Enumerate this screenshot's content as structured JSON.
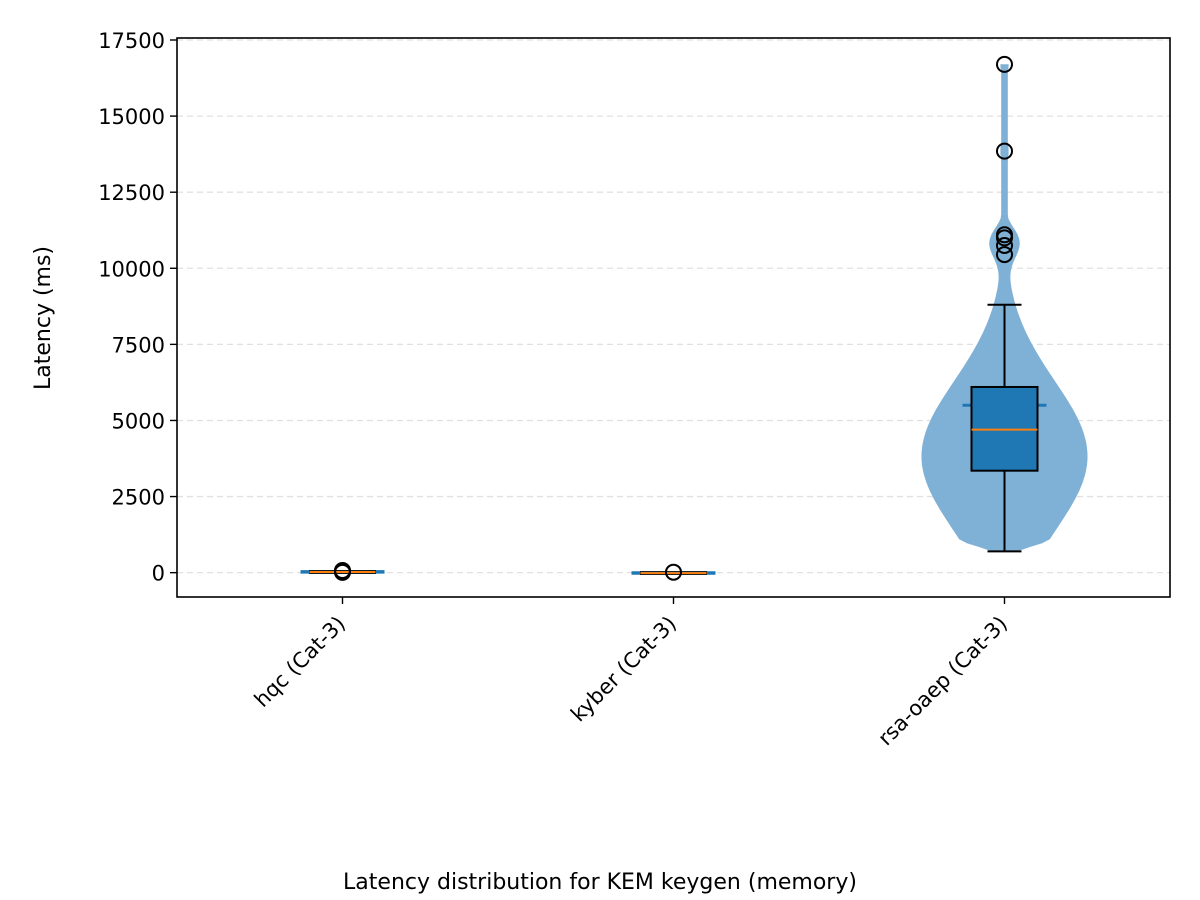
{
  "chart_data": {
    "type": "violin",
    "title": "Latency distribution for KEM keygen (memory)",
    "xlabel": "",
    "ylabel": "Latency (ms)",
    "ylim": [
      -800,
      17500
    ],
    "yticks": [
      0,
      2500,
      5000,
      7500,
      10000,
      12500,
      15000,
      17500
    ],
    "grid": "y-dashed",
    "categories": [
      "hqc (Cat-3)",
      "kyber (Cat-3)",
      "rsa-oaep (Cat-3)"
    ],
    "distributions": [
      {
        "category": "hqc (Cat-3)",
        "min": 0,
        "q1": 10,
        "median": 20,
        "q3": 30,
        "max": 60,
        "mean": 25,
        "outliers": [
          10,
          40,
          55,
          70
        ]
      },
      {
        "category": "kyber (Cat-3)",
        "min": -40,
        "q1": -20,
        "median": -15,
        "q3": 0,
        "max": 10,
        "mean": -10,
        "outliers": [
          15
        ]
      },
      {
        "category": "rsa-oaep (Cat-3)",
        "min": 700,
        "q1": 3350,
        "median": 4700,
        "q3": 6100,
        "max": 8800,
        "mean": 5500,
        "outliers": [
          10450,
          10750,
          11000,
          11100,
          13850,
          16700
        ]
      }
    ],
    "colors": {
      "violin": "#7fb0d6",
      "box": "#1f77b4",
      "median": "#ff7f0e",
      "mean": "#1f77b4",
      "grid": "#e0e0e0"
    }
  }
}
